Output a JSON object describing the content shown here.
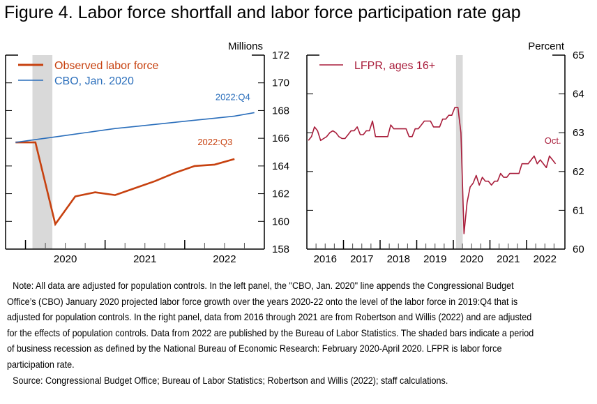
{
  "title": "Figure 4. Labor force shortfall and labor force participation rate gap",
  "colors": {
    "observed": "#c7410f",
    "cbo": "#2a6ebb",
    "lfpr": "#a81c3a",
    "recession": "#d9d9d9",
    "axis": "#000000"
  },
  "chart_data": [
    {
      "type": "line",
      "panel": "left",
      "unit_label": "Millions",
      "ylim": [
        158,
        172
      ],
      "yticks": [
        158,
        160,
        162,
        164,
        166,
        168,
        170,
        172
      ],
      "y_axis_side": "right",
      "x_range": [
        "2019:Q4",
        "2022:Q4"
      ],
      "xtick_labels": [
        "2020",
        "2021",
        "2022"
      ],
      "legend_placement": "top-left",
      "recession": {
        "start": "2020:Q1",
        "end": "2020:Q2"
      },
      "series": [
        {
          "name": "Observed labor force",
          "color_key": "observed",
          "x": [
            "2019:Q4",
            "2020:Q1",
            "2020:Q2",
            "2020:Q3",
            "2020:Q4",
            "2021:Q1",
            "2021:Q2",
            "2021:Q3",
            "2021:Q4",
            "2022:Q1",
            "2022:Q2",
            "2022:Q3"
          ],
          "values": [
            165.7,
            165.7,
            159.8,
            161.8,
            162.1,
            161.9,
            162.4,
            162.9,
            163.5,
            164.0,
            164.1,
            164.5
          ],
          "end_label": "2022:Q3"
        },
        {
          "name": "CBO, Jan. 2020",
          "color_key": "cbo",
          "x": [
            "2019:Q4",
            "2020:Q1",
            "2020:Q2",
            "2020:Q3",
            "2020:Q4",
            "2021:Q1",
            "2021:Q2",
            "2021:Q3",
            "2021:Q4",
            "2022:Q1",
            "2022:Q2",
            "2022:Q3",
            "2022:Q4"
          ],
          "values": [
            165.7,
            165.9,
            166.1,
            166.3,
            166.5,
            166.7,
            166.85,
            167.0,
            167.15,
            167.3,
            167.45,
            167.6,
            167.85
          ],
          "end_label": "2022:Q4"
        }
      ]
    },
    {
      "type": "line",
      "panel": "right",
      "unit_label": "Percent",
      "ylim": [
        60,
        65
      ],
      "yticks": [
        60,
        61,
        62,
        63,
        64,
        65
      ],
      "y_axis_side": "right",
      "x_range": [
        "2016-01",
        "2022-12"
      ],
      "xtick_labels": [
        "2016",
        "2017",
        "2018",
        "2019",
        "2020",
        "2021",
        "2022"
      ],
      "legend_placement": "top-left",
      "recession": {
        "start": "2020-02",
        "end": "2020-04"
      },
      "series": [
        {
          "name": "LFPR, ages 16+",
          "color_key": "lfpr",
          "start": "2016-01",
          "frequency": "monthly",
          "values": [
            62.8,
            62.9,
            63.15,
            63.05,
            62.8,
            62.85,
            62.9,
            63.0,
            63.05,
            63.0,
            62.9,
            62.85,
            62.85,
            62.95,
            63.05,
            63.05,
            63.15,
            62.95,
            62.95,
            63.05,
            63.05,
            63.3,
            62.9,
            62.9,
            62.9,
            62.9,
            62.9,
            63.2,
            63.1,
            63.1,
            63.1,
            63.1,
            63.1,
            62.9,
            62.9,
            63.1,
            63.1,
            63.2,
            63.3,
            63.3,
            63.3,
            63.15,
            63.15,
            63.15,
            63.35,
            63.35,
            63.45,
            63.45,
            63.65,
            63.65,
            63.0,
            60.4,
            61.2,
            61.6,
            61.7,
            61.9,
            61.65,
            61.85,
            61.75,
            61.75,
            61.65,
            61.75,
            61.75,
            61.95,
            61.85,
            61.85,
            61.95,
            61.95,
            61.95,
            61.95,
            62.2,
            62.2,
            62.2,
            62.3,
            62.4,
            62.2,
            62.3,
            62.2,
            62.1,
            62.4,
            62.3,
            62.2
          ],
          "end_label": "Oct."
        }
      ]
    }
  ],
  "notes": {
    "note": "Note: All data are adjusted for population controls. In the left panel, the \"CBO, Jan. 2020\" line appends the Congressional Budget Office’s (CBO) January 2020 projected labor force growth over the years 2020-22 onto the level of the labor force in 2019:Q4 that is adjusted for population controls. In the right panel, data from 2016 through 2021 are from Robertson and Willis (2022) and are adjusted for the effects of population controls. Data from 2022 are published by the Bureau of Labor Statistics. The shaded bars indicate a period of business recession as defined by the National Bureau of Economic Research: February 2020-April 2020. LFPR is labor force participation rate.",
    "source": "Source: Congressional Budget Office; Bureau of Labor Statistics; Robertson and Willis (2022); staff calculations."
  }
}
